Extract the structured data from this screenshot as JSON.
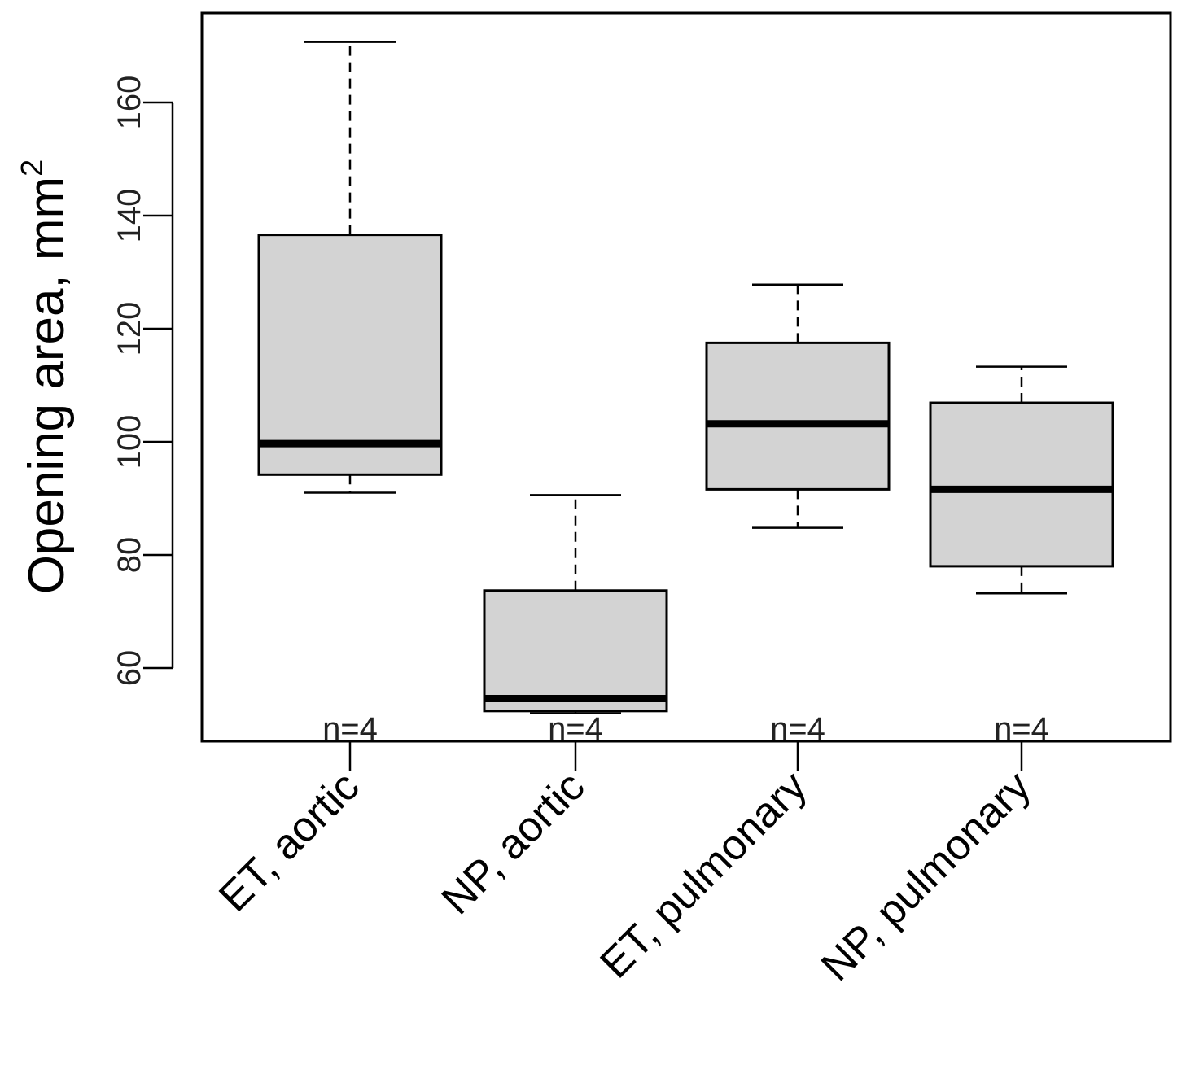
{
  "chart_data": {
    "type": "box",
    "title": "",
    "xlabel": "",
    "ylabel": "Opening area, mm",
    "ylabel_superscript": "2",
    "ylim": [
      47,
      172
    ],
    "yticks": [
      60,
      80,
      100,
      120,
      140,
      160
    ],
    "categories": [
      "ET, aortic",
      "NP, aortic",
      "ET, pulmonary",
      "NP, pulmonary"
    ],
    "sample_size_labels": [
      "n=4",
      "n=4",
      "n=4",
      "n=4"
    ],
    "boxes": [
      {
        "whisker_low": 91.0,
        "q1": 94.2,
        "median": 99.7,
        "q3": 136.6,
        "whisker_high": 170.7
      },
      {
        "whisker_low": 52.0,
        "q1": 52.4,
        "median": 54.6,
        "q3": 73.7,
        "whisker_high": 90.6
      },
      {
        "whisker_low": 84.8,
        "q1": 91.6,
        "median": 103.2,
        "q3": 117.5,
        "whisker_high": 127.8
      },
      {
        "whisker_low": 73.2,
        "q1": 78.0,
        "median": 91.6,
        "q3": 106.9,
        "whisker_high": 113.3
      }
    ],
    "box_fill": "#d3d3d3",
    "line_color": "#000000",
    "grid": false
  }
}
